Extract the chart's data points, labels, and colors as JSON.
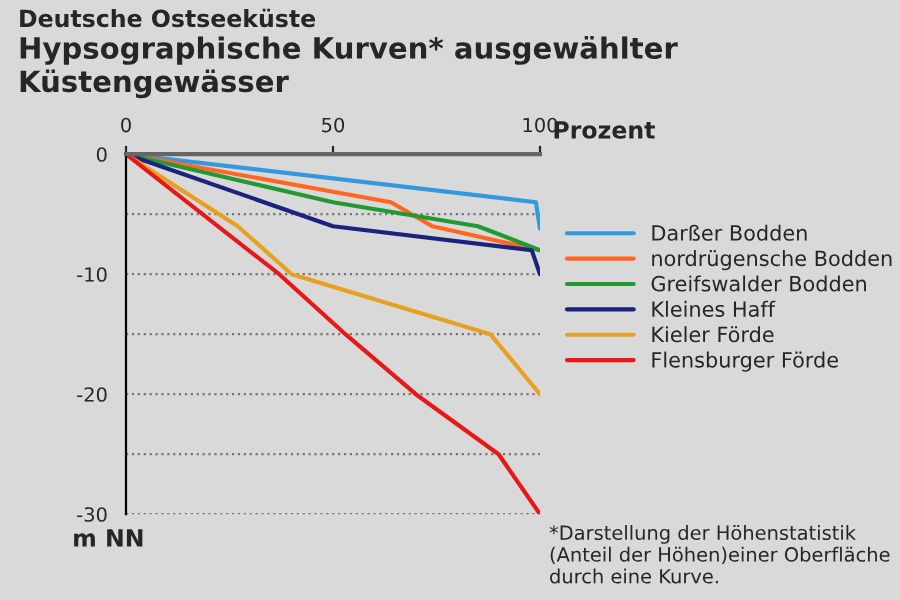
{
  "chart_data": {
    "type": "line",
    "title": "Hypsographische Kurven* ausgewählter Küstengewässer",
    "subtitle": "Deutsche Ostseeküste",
    "xlabel": "Prozent",
    "ylabel": "m NN",
    "xlim": [
      0,
      100
    ],
    "xticks": [
      0,
      50,
      100
    ],
    "ylim": [
      -30,
      0
    ],
    "yticks": [
      0,
      {
        "value": -5,
        "label": null
      },
      -10,
      {
        "value": -15,
        "label": null
      },
      -20,
      {
        "value": -25,
        "label": null
      },
      -30
    ],
    "grid": "y",
    "legend": "right",
    "marker": "none",
    "line_style": "solid",
    "series": [
      {
        "name": "Darßer Bodden",
        "color": "#3399dd",
        "x": [
          0,
          99,
          100
        ],
        "values": [
          0,
          -4,
          -6.2
        ]
      },
      {
        "name": "nordrügensche Bodden",
        "color": "#ff6622",
        "x": [
          0,
          64,
          74,
          100
        ],
        "values": [
          0,
          -4,
          -6,
          -8
        ]
      },
      {
        "name": "Greifswalder Bodden",
        "color": "#229933",
        "x": [
          0,
          50,
          85,
          100
        ],
        "values": [
          0,
          -4,
          -6,
          -8
        ]
      },
      {
        "name": "Kleines Haff",
        "color": "#1a237e",
        "x": [
          0,
          50,
          98,
          100
        ],
        "values": [
          0,
          -6,
          -8,
          -10
        ]
      },
      {
        "name": "Kieler Förde",
        "color": "#e8a020",
        "x": [
          0,
          27,
          40,
          88,
          100
        ],
        "values": [
          0,
          -6,
          -10,
          -15,
          -20
        ]
      },
      {
        "name": "Flensburger Förde",
        "color": "#e81818",
        "x": [
          0,
          37,
          53,
          70,
          90,
          100
        ],
        "values": [
          0,
          -10,
          -15,
          -20,
          -25,
          -30
        ]
      }
    ],
    "annotations": [
      "*Darstellung der Höhenstatistik (Anteil der Höhen)einer Oberfläche durch eine Kurve."
    ]
  }
}
